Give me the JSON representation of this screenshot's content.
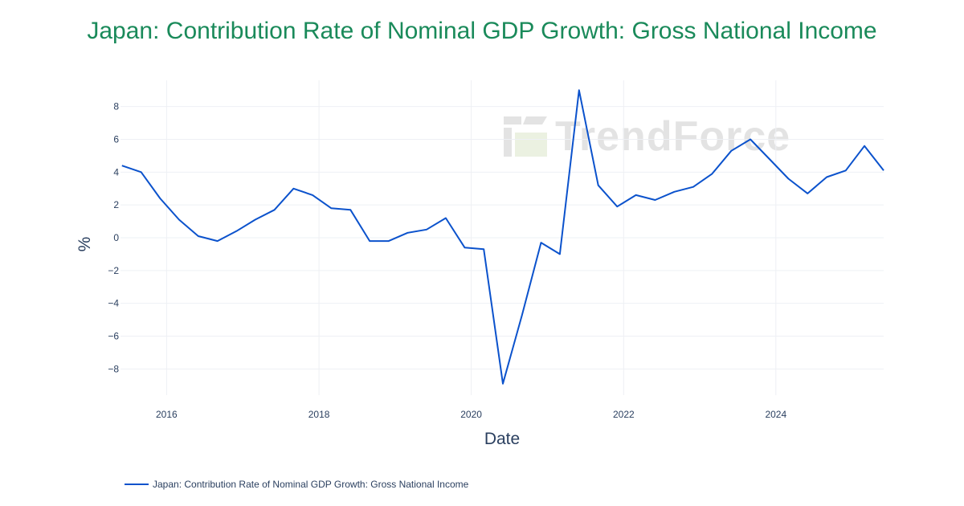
{
  "title": "Japan: Contribution Rate of Nominal GDP Growth: Gross National Income",
  "watermark": "TrendForce",
  "legend": {
    "label": "Japan: Contribution Rate of Nominal GDP Growth: Gross National Income"
  },
  "colors": {
    "line": "#0b52cc",
    "title": "#1a8a5a",
    "grid": "#eef0f4",
    "text": "#2a3f5f"
  },
  "chart_data": {
    "type": "line",
    "title": "Japan: Contribution Rate of Nominal GDP Growth: Gross National Income",
    "xlabel": "Date",
    "ylabel": "%",
    "xlim": [
      "2015-05-25",
      "2025-06-01"
    ],
    "ylim": [
      -9.6,
      9.6
    ],
    "x_ticks": [
      {
        "date": "2016-01-01",
        "label": "2016"
      },
      {
        "date": "2018-01-01",
        "label": "2018"
      },
      {
        "date": "2020-01-01",
        "label": "2020"
      },
      {
        "date": "2022-01-01",
        "label": "2022"
      },
      {
        "date": "2024-01-01",
        "label": "2024"
      }
    ],
    "y_ticks": [
      {
        "value": 8,
        "label": "8"
      },
      {
        "value": 6,
        "label": "6"
      },
      {
        "value": 4,
        "label": "4"
      },
      {
        "value": 2,
        "label": "2"
      },
      {
        "value": 0,
        "label": "0"
      },
      {
        "value": -2,
        "label": "−2"
      },
      {
        "value": -4,
        "label": "−4"
      },
      {
        "value": -6,
        "label": "−6"
      },
      {
        "value": -8,
        "label": "−8"
      }
    ],
    "grid": true,
    "legend_position": "bottom-left",
    "series": [
      {
        "name": "Japan: Contribution Rate of Nominal GDP Growth: Gross National Income",
        "points": [
          {
            "x": "2015-06-01",
            "y": 4.4
          },
          {
            "x": "2015-09-01",
            "y": 4.0
          },
          {
            "x": "2015-12-01",
            "y": 2.4
          },
          {
            "x": "2016-03-01",
            "y": 1.1
          },
          {
            "x": "2016-06-01",
            "y": 0.1
          },
          {
            "x": "2016-09-01",
            "y": -0.2
          },
          {
            "x": "2016-12-01",
            "y": 0.4
          },
          {
            "x": "2017-03-01",
            "y": 1.1
          },
          {
            "x": "2017-06-01",
            "y": 1.7
          },
          {
            "x": "2017-09-01",
            "y": 3.0
          },
          {
            "x": "2017-12-01",
            "y": 2.6
          },
          {
            "x": "2018-03-01",
            "y": 1.8
          },
          {
            "x": "2018-06-01",
            "y": 1.7
          },
          {
            "x": "2018-09-01",
            "y": -0.2
          },
          {
            "x": "2018-12-01",
            "y": -0.2
          },
          {
            "x": "2019-03-01",
            "y": 0.3
          },
          {
            "x": "2019-06-01",
            "y": 0.5
          },
          {
            "x": "2019-09-01",
            "y": 1.2
          },
          {
            "x": "2019-12-01",
            "y": -0.6
          },
          {
            "x": "2020-03-01",
            "y": -0.7
          },
          {
            "x": "2020-06-01",
            "y": -8.9
          },
          {
            "x": "2020-09-01",
            "y": -4.7
          },
          {
            "x": "2020-12-01",
            "y": -0.3
          },
          {
            "x": "2021-03-01",
            "y": -1.0
          },
          {
            "x": "2021-06-01",
            "y": 9.0
          },
          {
            "x": "2021-09-01",
            "y": 3.2
          },
          {
            "x": "2021-12-01",
            "y": 1.9
          },
          {
            "x": "2022-03-01",
            "y": 2.6
          },
          {
            "x": "2022-06-01",
            "y": 2.3
          },
          {
            "x": "2022-09-01",
            "y": 2.8
          },
          {
            "x": "2022-12-01",
            "y": 3.1
          },
          {
            "x": "2023-03-01",
            "y": 3.9
          },
          {
            "x": "2023-06-01",
            "y": 5.3
          },
          {
            "x": "2023-09-01",
            "y": 6.0
          },
          {
            "x": "2023-12-01",
            "y": 4.8
          },
          {
            "x": "2024-03-01",
            "y": 3.6
          },
          {
            "x": "2024-06-01",
            "y": 2.7
          },
          {
            "x": "2024-09-01",
            "y": 3.7
          },
          {
            "x": "2024-12-01",
            "y": 4.1
          },
          {
            "x": "2025-03-01",
            "y": 5.6
          },
          {
            "x": "2025-06-01",
            "y": 4.1
          }
        ]
      }
    ]
  }
}
